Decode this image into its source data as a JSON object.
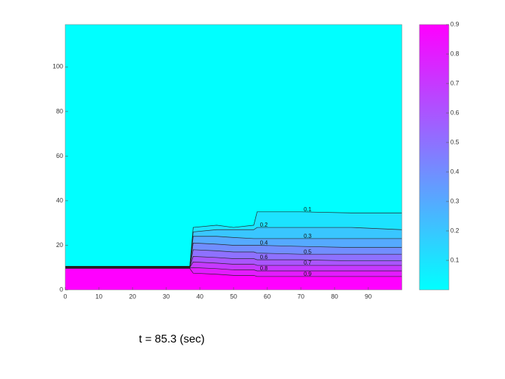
{
  "chart_data": {
    "type": "contour",
    "caption": "t = 85.3 (sec)",
    "x": [
      0,
      37,
      38,
      45,
      50,
      56,
      57,
      70,
      85,
      100
    ],
    "contours": [
      {
        "level": 0.1,
        "y": [
          10.6,
          10.6,
          28,
          29,
          28,
          29,
          35,
          35,
          34.5,
          34.5
        ]
      },
      {
        "level": 0.2,
        "y": [
          10.5,
          10.5,
          26,
          27,
          27,
          27,
          28,
          28,
          28,
          27
        ]
      },
      {
        "level": 0.3,
        "y": [
          10.4,
          10.4,
          24,
          24,
          23.5,
          23,
          23,
          23,
          23,
          23
        ]
      },
      {
        "level": 0.4,
        "y": [
          10.3,
          10.3,
          21,
          20.5,
          20,
          20,
          20,
          19.5,
          19,
          19
        ]
      },
      {
        "level": 0.5,
        "y": [
          10.2,
          10.2,
          18,
          17.5,
          17,
          17,
          16.5,
          16,
          16,
          16
        ]
      },
      {
        "level": 0.6,
        "y": [
          10.1,
          10.1,
          15,
          14.5,
          14,
          14,
          13.5,
          13.5,
          13,
          13
        ]
      },
      {
        "level": 0.7,
        "y": [
          10,
          10,
          12.5,
          12,
          11.5,
          11.5,
          11,
          11,
          11,
          11
        ]
      },
      {
        "level": 0.8,
        "y": [
          9.8,
          9.8,
          10,
          9.5,
          9,
          9,
          8.5,
          8.5,
          8.5,
          8.5
        ]
      },
      {
        "level": 0.9,
        "y": [
          9.6,
          9.6,
          7.5,
          7,
          6.5,
          6.5,
          6,
          6,
          6,
          6
        ]
      }
    ],
    "xlim": [
      0,
      100
    ],
    "ylim": [
      0,
      119
    ],
    "xticks": [
      0,
      10,
      20,
      30,
      40,
      50,
      60,
      70,
      80,
      90
    ],
    "yticks": [
      0,
      20,
      40,
      60,
      80,
      100
    ],
    "clim": [
      0,
      0.9
    ],
    "colorbar_ticks": [
      0.1,
      0.2,
      0.3,
      0.4,
      0.5,
      0.6,
      0.7,
      0.8,
      0.9
    ],
    "colormap": [
      "#00ffff",
      "#ff00ff"
    ]
  }
}
